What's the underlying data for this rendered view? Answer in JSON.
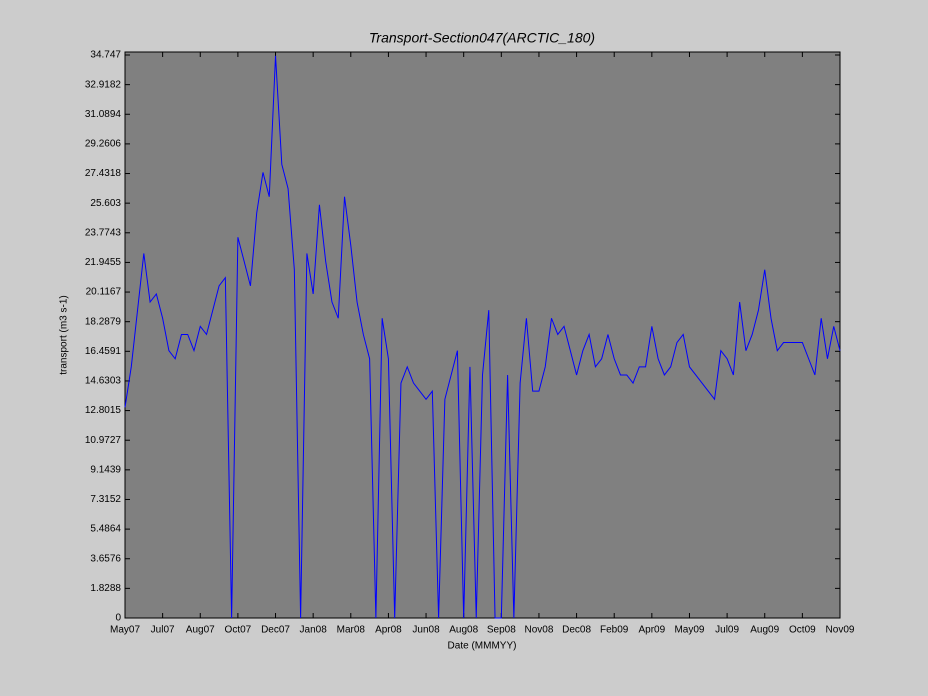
{
  "chart_data": {
    "type": "line",
    "title": "Transport-Section047(ARCTIC_180)",
    "x_label": "Date (MMMYY)",
    "y_label": "transport (m3 s-1)",
    "categories": [
      "May07",
      null,
      null,
      null,
      null,
      null,
      "Jul07",
      null,
      null,
      null,
      null,
      null,
      "Aug07",
      null,
      null,
      null,
      null,
      null,
      "Oct07",
      null,
      null,
      null,
      null,
      null,
      "Dec07",
      null,
      null,
      null,
      null,
      null,
      "Jan08",
      null,
      null,
      null,
      null,
      null,
      "Mar08",
      null,
      null,
      null,
      null,
      null,
      "Apr08",
      null,
      null,
      null,
      null,
      null,
      "Jun08",
      null,
      null,
      null,
      null,
      null,
      "Aug08",
      null,
      null,
      null,
      null,
      null,
      "Sep08",
      null,
      null,
      null,
      null,
      null,
      "Nov08",
      null,
      null,
      null,
      null,
      null,
      "Dec08",
      null,
      null,
      null,
      null,
      null,
      "Feb09",
      null,
      null,
      null,
      null,
      null,
      "Apr09",
      null,
      null,
      null,
      null,
      null,
      "May09",
      null,
      null,
      null,
      null,
      null,
      "Jul09",
      null,
      null,
      null,
      null,
      null,
      "Aug09",
      null,
      null,
      null,
      null,
      null,
      "Oct09",
      null,
      null,
      null,
      null,
      null,
      "Nov09"
    ],
    "values": [
      13.0,
      15.5,
      19.0,
      22.5,
      19.5,
      20.0,
      18.5,
      16.5,
      16.0,
      17.5,
      17.5,
      16.5,
      18.0,
      17.5,
      19.0,
      20.5,
      21.0,
      0,
      23.5,
      22.0,
      20.5,
      25.0,
      27.5,
      26.0,
      34.7,
      28.0,
      26.5,
      21.5,
      0,
      22.5,
      20.0,
      25.5,
      22.0,
      19.5,
      18.5,
      26.0,
      23.0,
      19.5,
      17.5,
      16.0,
      0,
      18.5,
      16.0,
      0,
      14.5,
      15.5,
      14.5,
      14.0,
      13.5,
      14.0,
      0,
      13.5,
      15.0,
      16.5,
      0,
      15.5,
      0,
      15.0,
      19.0,
      0,
      0,
      15.0,
      0,
      14.5,
      18.5,
      14.0,
      14.0,
      15.5,
      18.5,
      17.5,
      18.0,
      16.5,
      15.0,
      16.5,
      17.5,
      15.5,
      16.0,
      17.5,
      16.0,
      15.0,
      15.0,
      14.5,
      15.5,
      15.5,
      18.0,
      16.0,
      15.0,
      15.5,
      17.0,
      17.5,
      15.5,
      15.0,
      14.5,
      14.0,
      13.5,
      16.5,
      16.0,
      15.0,
      19.5,
      16.5,
      17.5,
      19.0,
      21.5,
      18.5,
      16.5,
      17.0,
      17.0,
      17.0,
      17.0,
      16.0,
      15.0,
      18.5,
      16.0,
      18.0,
      16.5
    ],
    "color": "#0000ff",
    "ylim": [
      0,
      34.747
    ],
    "yticks": [
      0,
      1.8288,
      3.6576,
      5.4864,
      7.3152,
      9.1439,
      10.9727,
      12.8015,
      14.6303,
      16.4591,
      18.2879,
      20.1167,
      21.9455,
      23.7743,
      25.603,
      27.4318,
      29.2606,
      31.0894,
      32.9182,
      34.747
    ],
    "grid": false
  }
}
